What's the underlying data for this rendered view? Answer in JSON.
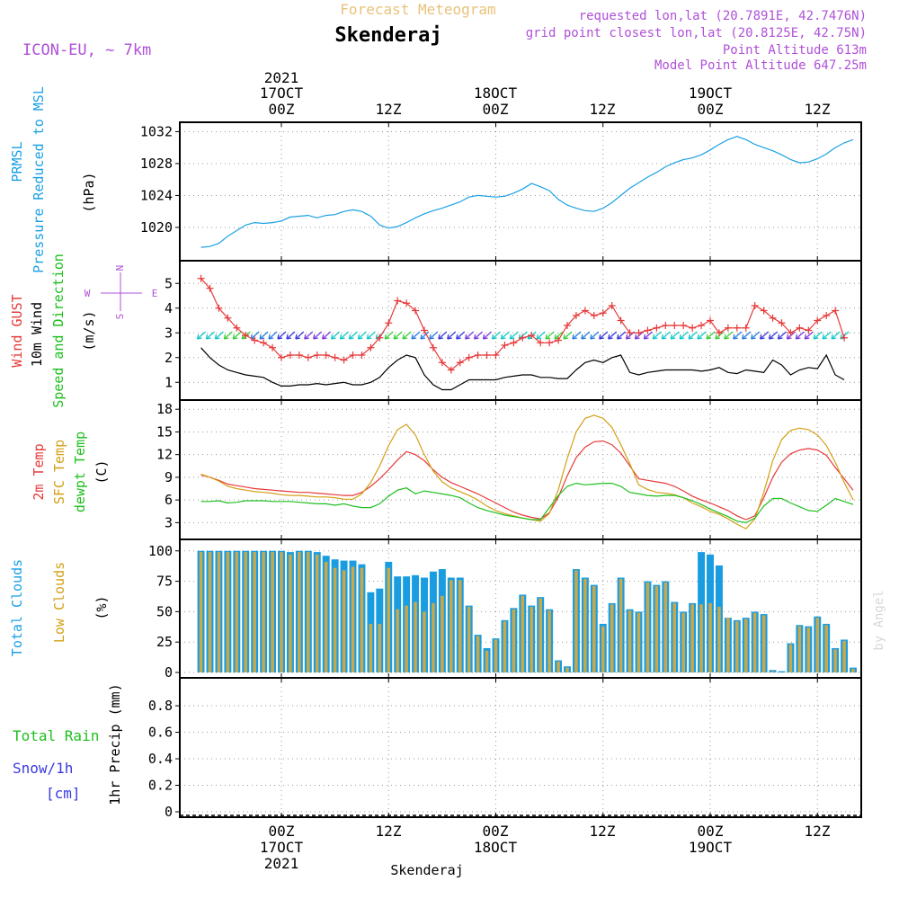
{
  "header": {
    "subtitle": "Forecast Meteogram",
    "location": "Skenderaj",
    "model": "ICON-EU, ~ 7km",
    "requested": "requested lon,lat (20.7891E, 42.7476N)",
    "grid_point": "grid point closest lon,lat (20.8125E, 42.75N)",
    "point_altitude": "Point Altitude 613m",
    "model_altitude": "Model Point Altitude 647.25m"
  },
  "time_axis": {
    "top_year": "2021",
    "days": [
      {
        "hour": "00Z",
        "date": "17OCT",
        "year": "2021"
      },
      {
        "hour": "00Z",
        "date": "18OCT",
        "year": ""
      },
      {
        "hour": "00Z",
        "date": "19OCT",
        "year": ""
      }
    ],
    "noon_label": "12Z",
    "bottom_label": "Skenderaj"
  },
  "watermark": "by Angel",
  "colors": {
    "pressure": "#1aa0e6",
    "gust": "#e63a3a",
    "wind": "#000000",
    "temp2m": "#e63a3a",
    "sfc": "#d4a017",
    "dewpt": "#1fbf1f",
    "total_clouds": "#1a9de0",
    "low_clouds": "#c9a84a",
    "model": "#b050d8",
    "snow": "#3a3ae0"
  },
  "chart_data": [
    {
      "type": "line",
      "panel": "pressure",
      "ylabel_lines": [
        "PRMSL",
        "Pressure Reduced to MSL",
        "(hPa)"
      ],
      "ylim": [
        1016.5,
        1032.5
      ],
      "yticks": [
        1020,
        1024,
        1028,
        1032
      ],
      "x_hours": [
        -9,
        -8,
        -7,
        -6,
        -5,
        -4,
        -3,
        -2,
        -1,
        0,
        1,
        2,
        3,
        4,
        5,
        6,
        7,
        8,
        9,
        10,
        11,
        12,
        13,
        14,
        15,
        16,
        17,
        18,
        19,
        20,
        21,
        22,
        23,
        24,
        25,
        26,
        27,
        28,
        29,
        30,
        31,
        32,
        33,
        34,
        35,
        36,
        37,
        38,
        39,
        40,
        41,
        42,
        43,
        44,
        45,
        46,
        47,
        48,
        49,
        50,
        51,
        52,
        53,
        54,
        55,
        56,
        57,
        58,
        59,
        60,
        61,
        62,
        63,
        64
      ],
      "series": [
        {
          "name": "PRMSL",
          "values": [
            1017.5,
            1017.6,
            1018.0,
            1018.9,
            1019.6,
            1020.3,
            1020.6,
            1020.5,
            1020.6,
            1020.8,
            1021.3,
            1021.4,
            1021.5,
            1021.2,
            1021.5,
            1021.6,
            1022.0,
            1022.2,
            1022.0,
            1021.4,
            1020.3,
            1019.9,
            1020.1,
            1020.6,
            1021.2,
            1021.7,
            1022.1,
            1022.4,
            1022.8,
            1023.2,
            1023.8,
            1024.0,
            1023.9,
            1023.8,
            1023.9,
            1024.3,
            1024.8,
            1025.5,
            1025.1,
            1024.6,
            1023.5,
            1022.8,
            1022.4,
            1022.1,
            1022.0,
            1022.4,
            1023.1,
            1024.0,
            1024.9,
            1025.6,
            1026.3,
            1026.9,
            1027.6,
            1028.1,
            1028.5,
            1028.7,
            1029.1,
            1029.7,
            1030.4,
            1031.0,
            1031.4,
            1031.0,
            1030.4,
            1030.0,
            1029.6,
            1029.1,
            1028.5,
            1028.1,
            1028.2,
            1028.6,
            1029.2,
            1030.0,
            1030.6,
            1031.0
          ]
        }
      ]
    },
    {
      "type": "line",
      "panel": "wind",
      "ylabel_lines": [
        "Wind GUST",
        "10m Wind",
        "Speed and Direction",
        "(m/s)"
      ],
      "compass": {
        "n": "N",
        "s": "S",
        "w": "W",
        "e": "E"
      },
      "ylim": [
        0.5,
        5.7
      ],
      "yticks": [
        1,
        2,
        3,
        4,
        5
      ],
      "x_hours": [
        -9,
        -8,
        -7,
        -6,
        -5,
        -4,
        -3,
        -2,
        -1,
        0,
        1,
        2,
        3,
        4,
        5,
        6,
        7,
        8,
        9,
        10,
        11,
        12,
        13,
        14,
        15,
        16,
        17,
        18,
        19,
        20,
        21,
        22,
        23,
        24,
        25,
        26,
        27,
        28,
        29,
        30,
        31,
        32,
        33,
        34,
        35,
        36,
        37,
        38,
        39,
        40,
        41,
        42,
        43,
        44,
        45,
        46,
        47,
        48,
        49,
        50,
        51,
        52,
        53,
        54,
        55,
        56,
        57,
        58,
        59,
        60,
        61,
        62,
        63
      ],
      "series": [
        {
          "name": "Wind GUST",
          "values": [
            5.2,
            4.8,
            4.0,
            3.6,
            3.2,
            2.9,
            2.7,
            2.6,
            2.4,
            2.0,
            2.1,
            2.1,
            2.0,
            2.1,
            2.1,
            2.0,
            1.9,
            2.1,
            2.1,
            2.4,
            2.8,
            3.4,
            4.3,
            4.2,
            3.9,
            3.1,
            2.4,
            1.8,
            1.5,
            1.8,
            2.0,
            2.1,
            2.1,
            2.1,
            2.5,
            2.6,
            2.8,
            2.9,
            2.6,
            2.6,
            2.7,
            3.3,
            3.7,
            3.9,
            3.7,
            3.8,
            4.1,
            3.5,
            3.0,
            3.0,
            3.1,
            3.2,
            3.3,
            3.3,
            3.3,
            3.2,
            3.3,
            3.5,
            3.0,
            3.2,
            3.2,
            3.2,
            4.1,
            3.9,
            3.6,
            3.4,
            3.0,
            3.2,
            3.1,
            3.5,
            3.7,
            3.9,
            2.8
          ]
        },
        {
          "name": "10m Wind",
          "values": [
            2.4,
            2.0,
            1.7,
            1.5,
            1.4,
            1.3,
            1.25,
            1.2,
            1.0,
            0.85,
            0.85,
            0.9,
            0.9,
            0.95,
            0.9,
            0.95,
            1.0,
            0.9,
            0.9,
            1.0,
            1.2,
            1.6,
            1.9,
            2.1,
            2.0,
            1.3,
            0.9,
            0.7,
            0.7,
            0.9,
            1.1,
            1.1,
            1.1,
            1.1,
            1.2,
            1.25,
            1.3,
            1.3,
            1.2,
            1.2,
            1.15,
            1.15,
            1.5,
            1.8,
            1.9,
            1.8,
            2.0,
            2.1,
            1.4,
            1.3,
            1.4,
            1.45,
            1.5,
            1.5,
            1.5,
            1.5,
            1.45,
            1.5,
            1.6,
            1.4,
            1.35,
            1.5,
            1.45,
            1.4,
            1.9,
            1.7,
            1.3,
            1.5,
            1.6,
            1.55,
            2.1,
            1.3,
            1.1
          ]
        }
      ],
      "arrows": {
        "speed_row_value": 2.9,
        "legend": "Speed and Direction"
      }
    },
    {
      "type": "line",
      "panel": "temperature",
      "ylabel_lines": [
        "2m Temp",
        "SFC Temp",
        "dewpt Temp",
        "(C)"
      ],
      "ylim": [
        1.5,
        18.5
      ],
      "yticks": [
        3,
        6,
        9,
        12,
        15,
        18
      ],
      "x_hours": [
        -9,
        -8,
        -7,
        -6,
        -5,
        -4,
        -3,
        -2,
        -1,
        0,
        1,
        2,
        3,
        4,
        5,
        6,
        7,
        8,
        9,
        10,
        11,
        12,
        13,
        14,
        15,
        16,
        17,
        18,
        19,
        20,
        21,
        22,
        23,
        24,
        25,
        26,
        27,
        28,
        29,
        30,
        31,
        32,
        33,
        34,
        35,
        36,
        37,
        38,
        39,
        40,
        41,
        42,
        43,
        44,
        45,
        46,
        47,
        48,
        49,
        50,
        51,
        52,
        53,
        54,
        55,
        56,
        57,
        58,
        59,
        60,
        61,
        62,
        63,
        64
      ],
      "series": [
        {
          "name": "2m Temp",
          "values": [
            9.3,
            9.0,
            8.6,
            8.1,
            7.9,
            7.7,
            7.5,
            7.4,
            7.3,
            7.2,
            7.1,
            7.0,
            7.0,
            6.9,
            6.8,
            6.7,
            6.6,
            6.6,
            7.0,
            7.8,
            8.8,
            10.0,
            11.3,
            12.4,
            12.0,
            11.2,
            10.0,
            9.0,
            8.3,
            7.8,
            7.3,
            6.8,
            6.2,
            5.6,
            5.0,
            4.4,
            4.0,
            3.7,
            3.5,
            4.3,
            6.4,
            9.2,
            11.6,
            13.0,
            13.7,
            13.8,
            13.3,
            12.2,
            10.5,
            8.8,
            8.6,
            8.4,
            8.2,
            7.8,
            7.2,
            6.5,
            6.0,
            5.6,
            5.1,
            4.6,
            3.9,
            3.4,
            3.9,
            6.3,
            9.0,
            11.0,
            12.1,
            12.6,
            12.8,
            12.6,
            11.9,
            10.3,
            8.8,
            7.3
          ]
        },
        {
          "name": "SFC Temp",
          "values": [
            9.4,
            9.0,
            8.5,
            7.8,
            7.5,
            7.3,
            7.1,
            7.0,
            6.9,
            6.7,
            6.6,
            6.6,
            6.5,
            6.4,
            6.4,
            6.3,
            6.1,
            6.1,
            6.8,
            8.3,
            10.5,
            13.2,
            15.3,
            16.0,
            14.6,
            12.0,
            9.8,
            8.4,
            7.6,
            7.1,
            6.6,
            6.0,
            5.2,
            4.6,
            4.2,
            3.9,
            3.6,
            3.4,
            3.2,
            4.2,
            7.4,
            11.5,
            15.0,
            16.8,
            17.2,
            16.8,
            15.6,
            13.3,
            10.8,
            8.0,
            7.4,
            7.0,
            6.9,
            6.7,
            6.3,
            5.6,
            5.1,
            4.5,
            4.1,
            3.5,
            2.8,
            2.2,
            3.5,
            7.0,
            11.2,
            14.0,
            15.2,
            15.5,
            15.3,
            14.6,
            13.2,
            11.0,
            8.3,
            6.0
          ]
        },
        {
          "name": "dewpt Temp",
          "values": [
            5.8,
            5.8,
            5.9,
            5.6,
            5.7,
            5.9,
            5.9,
            5.9,
            5.8,
            5.8,
            5.8,
            5.7,
            5.6,
            5.5,
            5.5,
            5.3,
            5.5,
            5.2,
            5.0,
            5.0,
            5.5,
            6.5,
            7.3,
            7.6,
            6.8,
            7.2,
            7.0,
            6.8,
            6.6,
            6.3,
            5.6,
            5.0,
            4.6,
            4.3,
            4.0,
            3.8,
            3.6,
            3.4,
            3.4,
            5.0,
            6.6,
            7.8,
            8.2,
            8.0,
            8.1,
            8.2,
            8.2,
            7.8,
            7.0,
            6.8,
            6.6,
            6.5,
            6.6,
            6.6,
            6.3,
            5.9,
            5.4,
            4.8,
            4.3,
            3.8,
            3.2,
            3.0,
            3.6,
            5.2,
            6.2,
            6.2,
            5.6,
            5.1,
            4.6,
            4.5,
            5.3,
            6.2,
            5.8,
            5.4
          ]
        }
      ]
    },
    {
      "type": "bar",
      "panel": "clouds",
      "ylabel_lines": [
        "Total Clouds",
        "Low Clouds",
        "(%)"
      ],
      "ylim": [
        0,
        105
      ],
      "yticks": [
        0,
        25,
        50,
        75,
        100
      ],
      "x_hours": [
        -9,
        -8,
        -7,
        -6,
        -5,
        -4,
        -3,
        -2,
        -1,
        0,
        1,
        2,
        3,
        4,
        5,
        6,
        7,
        8,
        9,
        10,
        11,
        12,
        13,
        14,
        15,
        16,
        17,
        18,
        19,
        20,
        21,
        22,
        23,
        24,
        25,
        26,
        27,
        28,
        29,
        30,
        31,
        32,
        33,
        34,
        35,
        36,
        37,
        38,
        39,
        40,
        41,
        42,
        43,
        44,
        45,
        46,
        47,
        48,
        49,
        50,
        51,
        52,
        53,
        54,
        55,
        56,
        57,
        58,
        59,
        60,
        61,
        62,
        63,
        64
      ],
      "series": [
        {
          "name": "Total Clouds",
          "values": [
            100,
            100,
            100,
            100,
            100,
            100,
            100,
            100,
            100,
            100,
            99,
            100,
            100,
            99,
            96,
            93,
            92,
            92,
            89,
            66,
            69,
            91,
            79,
            79,
            80,
            78,
            83,
            85,
            78,
            78,
            55,
            31,
            20,
            28,
            43,
            53,
            64,
            55,
            62,
            52,
            10,
            5,
            85,
            78,
            72,
            40,
            57,
            78,
            52,
            50,
            75,
            72,
            75,
            58,
            50,
            57,
            99,
            97,
            88,
            45,
            43,
            45,
            50,
            48,
            2,
            1,
            24,
            39,
            38,
            46,
            40,
            20,
            27,
            4
          ]
        },
        {
          "name": "Low Clouds",
          "values": [
            99,
            99,
            99,
            99,
            99,
            99,
            99,
            99,
            99,
            99,
            97,
            99,
            99,
            97,
            91,
            86,
            84,
            87,
            86,
            40,
            40,
            86,
            52,
            55,
            58,
            50,
            57,
            63,
            76,
            76,
            54,
            30,
            18,
            27,
            42,
            52,
            63,
            54,
            61,
            51,
            9,
            4,
            84,
            77,
            71,
            38,
            56,
            77,
            51,
            49,
            74,
            71,
            74,
            57,
            49,
            56,
            56,
            57,
            54,
            45,
            42,
            44,
            49,
            47,
            1,
            0,
            23,
            38,
            37,
            45,
            39,
            19,
            26,
            3
          ]
        }
      ]
    },
    {
      "type": "bar",
      "panel": "precip",
      "ylabel_lines": [
        "Total Rain",
        "Snow/1h",
        "[cm]",
        "1hr Precip (mm)"
      ],
      "ylim": [
        0,
        0.97
      ],
      "yticks": [
        0,
        0.2,
        0.4,
        0.6,
        0.8
      ],
      "x_hours": [],
      "series": [
        {
          "name": "Total Rain",
          "values": []
        },
        {
          "name": "Snow/1h",
          "values": []
        }
      ]
    }
  ]
}
